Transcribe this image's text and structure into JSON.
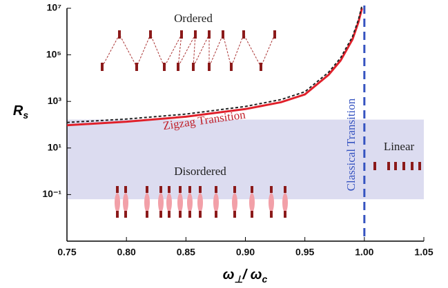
{
  "chart_data": {
    "type": "line",
    "x_label": {
      "main": "ω",
      "sub1": "⊥",
      "slash": "/ ω",
      "sub2": "c"
    },
    "y_label": {
      "main": "R",
      "sub": "s"
    },
    "x": [
      0.75,
      0.8,
      0.85,
      0.9,
      0.93,
      0.95,
      0.97,
      0.98,
      0.99,
      0.995,
      0.998
    ],
    "series": [
      {
        "color": "#e0202a",
        "values": [
          95,
          135,
          220,
          470,
          930,
          2000,
          14000,
          57000,
          460000,
          2500000,
          10000000
        ]
      },
      {
        "color": "#222222",
        "dashed": true,
        "values": [
          125,
          175,
          285,
          610,
          1200,
          2600,
          18000,
          74000,
          600000,
          3200000,
          13000000
        ]
      }
    ],
    "bands": [
      {
        "x": [
          0.75,
          1.05
        ],
        "y": [
          0.063,
          166
        ],
        "color": "#dcdcf0"
      }
    ],
    "vline": {
      "x": 1.0,
      "color": "#3553c0",
      "label": "Classical Transition"
    },
    "annotations": {
      "ordered": "Ordered",
      "disordered": "Disordered",
      "linear": "Linear",
      "zigzag": "Zigzag Transition"
    },
    "ylog": true,
    "xlim": [
      0.75,
      1.05
    ],
    "ylim": [
      0.001,
      10000000
    ],
    "xticks": [
      0.75,
      {
        "value": 0.8,
        "label": "0.80"
      },
      0.85,
      {
        "value": 0.9,
        "label": "0.90"
      },
      0.95,
      {
        "value": 1.0,
        "label": "1.00"
      },
      1.05
    ],
    "yticks": [
      {
        "value": 0.1,
        "label": "10⁻¹"
      },
      {
        "value": 10,
        "label": "10¹"
      },
      {
        "value": 1000,
        "label": "10³"
      },
      {
        "value": 100000,
        "label": "10⁵"
      },
      {
        "value": 10000000,
        "label": "10⁷"
      }
    ]
  }
}
